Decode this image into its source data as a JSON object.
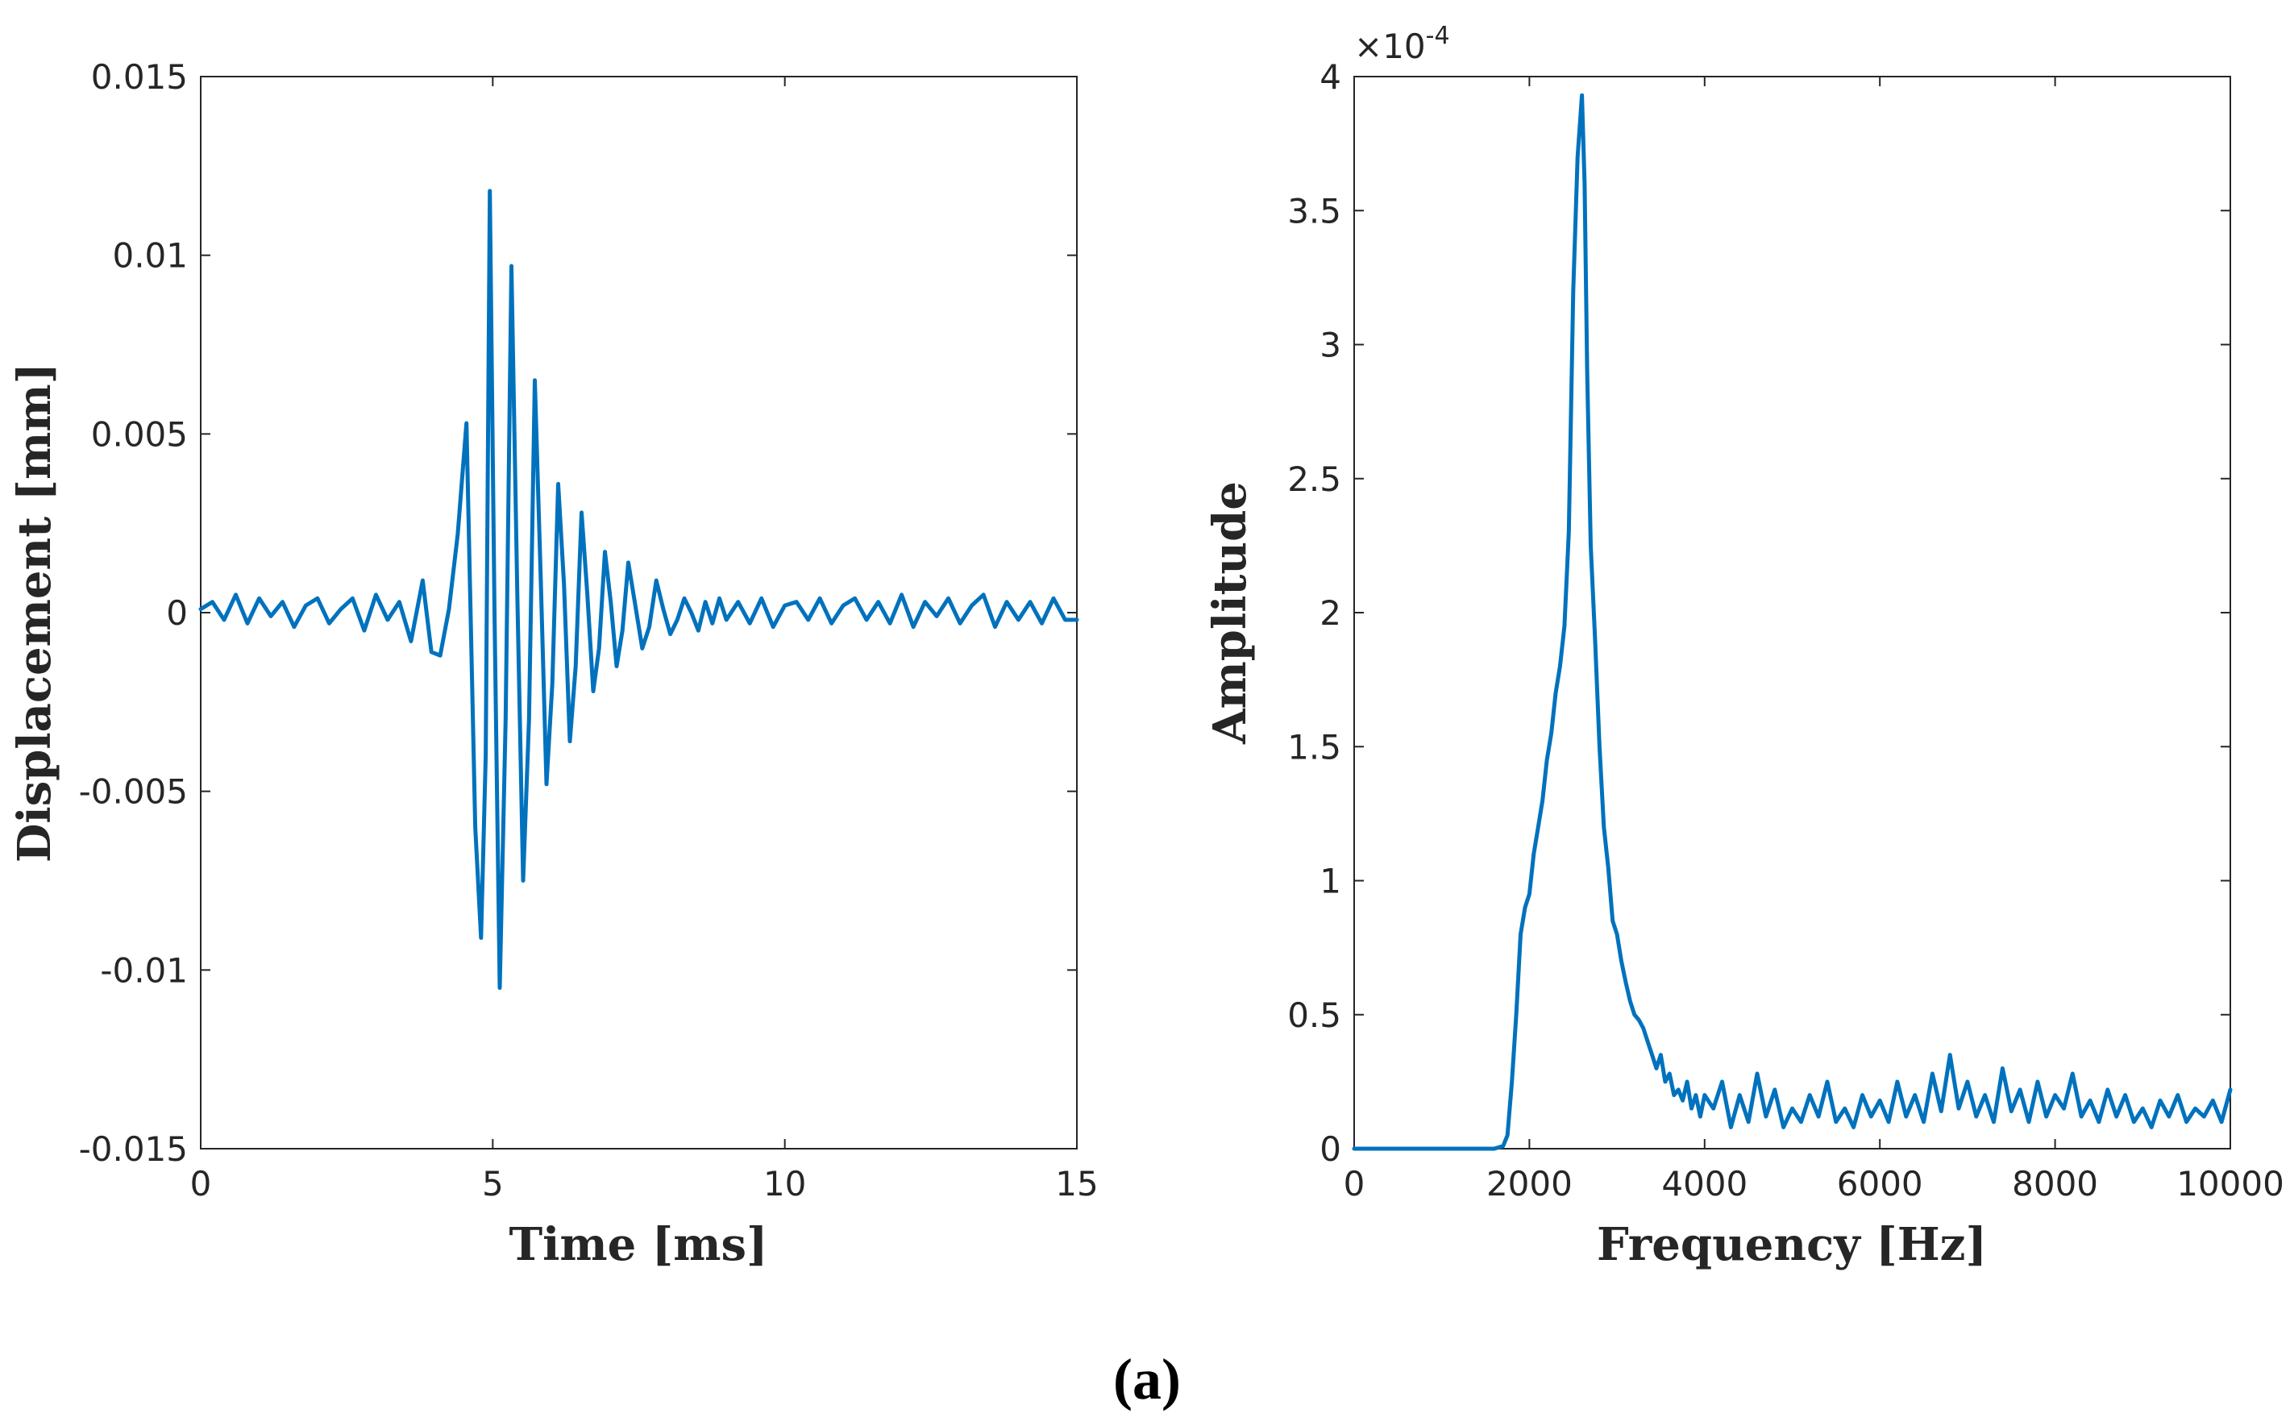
{
  "figure": {
    "caption": "(a)",
    "line_color": "#0072BD",
    "axes_color": "#262626"
  },
  "chart_data": [
    {
      "type": "line",
      "title": "",
      "xlabel": "Time [ms]",
      "ylabel": "Displacement [mm]",
      "xlim": [
        0,
        15
      ],
      "ylim": [
        -0.015,
        0.015
      ],
      "xticks": [
        0,
        5,
        10,
        15
      ],
      "xtick_labels": [
        "0",
        "5",
        "10",
        "15"
      ],
      "yticks": [
        -0.015,
        -0.01,
        -0.005,
        0,
        0.005,
        0.01,
        0.015
      ],
      "ytick_labels": [
        "-0.015",
        "-0.01",
        "-0.005",
        "0",
        "0.005",
        "0.01",
        "0.015"
      ],
      "grid": false,
      "series": [
        {
          "name": "Displacement",
          "x": [
            0,
            0.2,
            0.4,
            0.6,
            0.8,
            1.0,
            1.2,
            1.4,
            1.6,
            1.8,
            2.0,
            2.2,
            2.4,
            2.6,
            2.8,
            3.0,
            3.2,
            3.4,
            3.6,
            3.8,
            3.95,
            4.1,
            4.25,
            4.4,
            4.55,
            4.7,
            4.8,
            4.88,
            4.95,
            5.03,
            5.12,
            5.22,
            5.32,
            5.42,
            5.52,
            5.62,
            5.72,
            5.82,
            5.92,
            6.02,
            6.12,
            6.22,
            6.32,
            6.42,
            6.52,
            6.62,
            6.72,
            6.82,
            6.92,
            7.02,
            7.12,
            7.22,
            7.32,
            7.44,
            7.56,
            7.68,
            7.8,
            7.92,
            8.04,
            8.16,
            8.28,
            8.4,
            8.52,
            8.64,
            8.76,
            8.88,
            9.0,
            9.2,
            9.4,
            9.6,
            9.8,
            10.0,
            10.2,
            10.4,
            10.6,
            10.8,
            11.0,
            11.2,
            11.4,
            11.6,
            11.8,
            12.0,
            12.2,
            12.4,
            12.6,
            12.8,
            13.0,
            13.2,
            13.4,
            13.6,
            13.8,
            14.0,
            14.2,
            14.4,
            14.6,
            14.8,
            15.0
          ],
          "y": [
            0.0001,
            0.0003,
            -0.0002,
            0.0005,
            -0.0003,
            0.0004,
            -0.0001,
            0.0003,
            -0.0004,
            0.0002,
            0.0004,
            -0.0003,
            0.0001,
            0.0004,
            -0.0005,
            0.0005,
            -0.0002,
            0.0003,
            -0.0008,
            0.0009,
            -0.0011,
            -0.0012,
            0.0001,
            0.0022,
            0.0053,
            -0.006,
            -0.0091,
            -0.004,
            0.0118,
            0.0,
            -0.0105,
            -0.003,
            0.0097,
            0.0005,
            -0.0075,
            -0.003,
            0.0065,
            0.001,
            -0.0048,
            -0.002,
            0.0036,
            0.0008,
            -0.0036,
            -0.0015,
            0.0028,
            0.0005,
            -0.0022,
            -0.001,
            0.0017,
            0.0003,
            -0.0015,
            -0.0005,
            0.0014,
            0.0002,
            -0.001,
            -0.0004,
            0.0009,
            0.0001,
            -0.0006,
            -0.0002,
            0.0004,
            0.0,
            -0.0005,
            0.0003,
            -0.0003,
            0.0004,
            -0.0002,
            0.0003,
            -0.0003,
            0.0004,
            -0.0004,
            0.0002,
            0.0003,
            -0.0002,
            0.0004,
            -0.0003,
            0.0002,
            0.0004,
            -0.0002,
            0.0003,
            -0.0003,
            0.0005,
            -0.0004,
            0.0003,
            -0.0001,
            0.0004,
            -0.0003,
            0.0002,
            0.0005,
            -0.0004,
            0.0003,
            -0.0002,
            0.0003,
            -0.0003,
            0.0004,
            -0.0002,
            -0.0002
          ]
        }
      ]
    },
    {
      "type": "line",
      "title": "",
      "xlabel": "Frequency [Hz]",
      "ylabel": "Amplitude",
      "y_exponent_label": "×10",
      "y_exponent_power": "-4",
      "y_scale": 0.0001,
      "xlim": [
        0,
        10000
      ],
      "ylim": [
        0,
        4
      ],
      "xticks": [
        0,
        2000,
        4000,
        6000,
        8000,
        10000
      ],
      "xtick_labels": [
        "0",
        "2000",
        "4000",
        "6000",
        "8000",
        "10000"
      ],
      "yticks": [
        0,
        0.5,
        1,
        1.5,
        2,
        2.5,
        3,
        3.5,
        4
      ],
      "ytick_labels": [
        "0",
        "0.5",
        "1",
        "1.5",
        "2",
        "2.5",
        "3",
        "3.5",
        "4"
      ],
      "grid": false,
      "series": [
        {
          "name": "Amplitude",
          "x": [
            0,
            1000,
            1600,
            1700,
            1750,
            1800,
            1850,
            1900,
            1950,
            2000,
            2050,
            2100,
            2150,
            2200,
            2250,
            2300,
            2350,
            2400,
            2450,
            2500,
            2550,
            2600,
            2630,
            2660,
            2700,
            2750,
            2800,
            2850,
            2900,
            2950,
            3000,
            3050,
            3100,
            3150,
            3200,
            3250,
            3300,
            3350,
            3400,
            3450,
            3500,
            3550,
            3600,
            3650,
            3700,
            3750,
            3800,
            3850,
            3900,
            3950,
            4000,
            4100,
            4200,
            4300,
            4400,
            4500,
            4600,
            4700,
            4800,
            4900,
            5000,
            5100,
            5200,
            5300,
            5400,
            5500,
            5600,
            5700,
            5800,
            5900,
            6000,
            6100,
            6200,
            6300,
            6400,
            6500,
            6600,
            6700,
            6800,
            6900,
            7000,
            7100,
            7200,
            7300,
            7400,
            7500,
            7600,
            7700,
            7800,
            7900,
            8000,
            8100,
            8200,
            8300,
            8400,
            8500,
            8600,
            8700,
            8800,
            8900,
            9000,
            9100,
            9200,
            9300,
            9400,
            9500,
            9600,
            9700,
            9800,
            9900,
            10000
          ],
          "y": [
            0,
            0,
            0,
            0.01,
            0.05,
            0.25,
            0.5,
            0.8,
            0.9,
            0.95,
            1.1,
            1.2,
            1.3,
            1.45,
            1.55,
            1.7,
            1.8,
            1.95,
            2.3,
            3.2,
            3.7,
            3.93,
            3.6,
            2.9,
            2.25,
            1.9,
            1.5,
            1.2,
            1.05,
            0.85,
            0.8,
            0.7,
            0.62,
            0.55,
            0.5,
            0.48,
            0.45,
            0.4,
            0.35,
            0.3,
            0.35,
            0.25,
            0.28,
            0.2,
            0.22,
            0.18,
            0.25,
            0.15,
            0.2,
            0.12,
            0.2,
            0.15,
            0.25,
            0.08,
            0.2,
            0.1,
            0.28,
            0.12,
            0.22,
            0.08,
            0.15,
            0.1,
            0.2,
            0.12,
            0.25,
            0.1,
            0.15,
            0.08,
            0.2,
            0.12,
            0.18,
            0.1,
            0.25,
            0.12,
            0.2,
            0.1,
            0.28,
            0.14,
            0.35,
            0.15,
            0.25,
            0.12,
            0.2,
            0.1,
            0.3,
            0.14,
            0.22,
            0.1,
            0.25,
            0.12,
            0.2,
            0.15,
            0.28,
            0.12,
            0.18,
            0.1,
            0.22,
            0.12,
            0.2,
            0.1,
            0.15,
            0.08,
            0.18,
            0.12,
            0.2,
            0.1,
            0.15,
            0.12,
            0.18,
            0.1,
            0.22
          ]
        }
      ]
    }
  ]
}
